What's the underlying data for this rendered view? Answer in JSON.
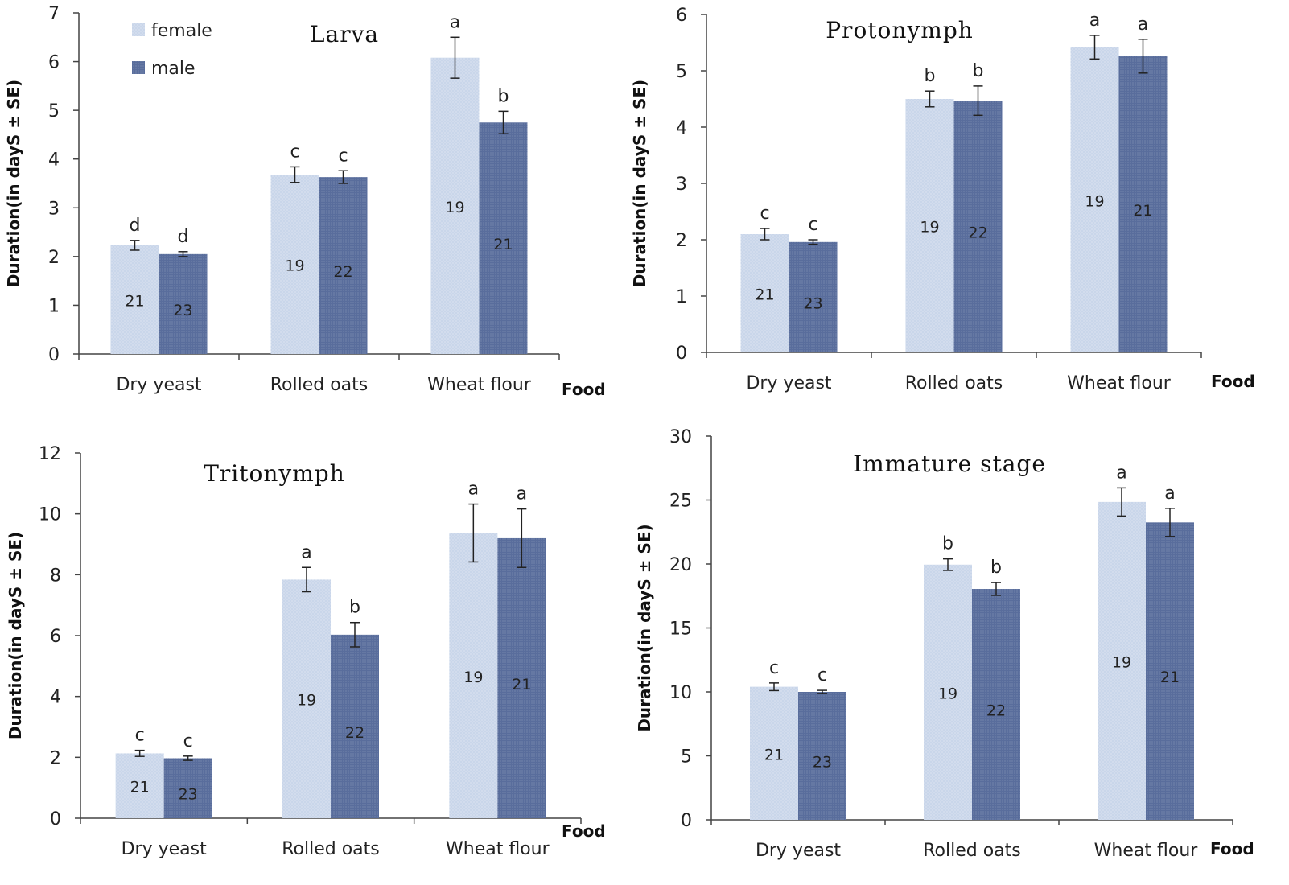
{
  "colors": {
    "female": "#c9d6ea",
    "male": "#596d9c",
    "axis": "#444444"
  },
  "legend": {
    "female": "female",
    "male": "male"
  },
  "chart_data": [
    {
      "type": "bar",
      "title": "Larva",
      "ylabel": "Duration(in dayS ± SE)",
      "xlabel": "Food",
      "categories": [
        "Dry yeast",
        "Rolled oats",
        "Wheat flour"
      ],
      "ylim": [
        0,
        7
      ],
      "yticks": [
        0,
        1,
        2,
        3,
        4,
        5,
        6,
        7
      ],
      "series": [
        {
          "name": "female",
          "values": [
            2.23,
            3.68,
            6.08
          ],
          "err": [
            0.1,
            0.16,
            0.42
          ],
          "sig": [
            "d",
            "c",
            "a"
          ],
          "n": [
            "21",
            "19",
            "19"
          ]
        },
        {
          "name": "male",
          "values": [
            2.05,
            3.63,
            4.75
          ],
          "err": [
            0.05,
            0.13,
            0.23
          ],
          "sig": [
            "d",
            "c",
            "b"
          ],
          "n": [
            "23",
            "22",
            "21"
          ]
        }
      ]
    },
    {
      "type": "bar",
      "title": "Protonymph",
      "ylabel": "Duration(in dayS ± SE)",
      "xlabel": "Food",
      "categories": [
        "Dry yeast",
        "Rolled oats",
        "Wheat flour"
      ],
      "ylim": [
        0,
        6
      ],
      "yticks": [
        0,
        1,
        2,
        3,
        4,
        5,
        6
      ],
      "series": [
        {
          "name": "female",
          "values": [
            2.1,
            4.5,
            5.42
          ],
          "err": [
            0.1,
            0.14,
            0.21
          ],
          "sig": [
            "c",
            "b",
            "a"
          ],
          "n": [
            "21",
            "19",
            "19"
          ]
        },
        {
          "name": "male",
          "values": [
            1.96,
            4.47,
            5.26
          ],
          "err": [
            0.04,
            0.26,
            0.3
          ],
          "sig": [
            "c",
            "b",
            "a"
          ],
          "n": [
            "23",
            "22",
            "21"
          ]
        }
      ]
    },
    {
      "type": "bar",
      "title": "Tritonymph",
      "ylabel": "Duration(in dayS ± SE)",
      "xlabel": "Food",
      "categories": [
        "Dry yeast",
        "Rolled oats",
        "Wheat flour"
      ],
      "ylim": [
        0,
        12
      ],
      "yticks": [
        0,
        2,
        4,
        6,
        8,
        10,
        12
      ],
      "series": [
        {
          "name": "female",
          "values": [
            2.13,
            7.84,
            9.37
          ],
          "err": [
            0.1,
            0.4,
            0.95
          ],
          "sig": [
            "c",
            "a",
            "a"
          ],
          "n": [
            "21",
            "19",
            "19"
          ]
        },
        {
          "name": "male",
          "values": [
            1.97,
            6.03,
            9.2
          ],
          "err": [
            0.07,
            0.4,
            0.96
          ],
          "sig": [
            "c",
            "b",
            "a"
          ],
          "n": [
            "23",
            "22",
            "21"
          ]
        }
      ]
    },
    {
      "type": "bar",
      "title": "Immature stage",
      "ylabel": "Duration(in dayS ± SE)",
      "xlabel": "Food",
      "categories": [
        "Dry yeast",
        "Rolled oats",
        "Wheat flour"
      ],
      "ylim": [
        0,
        30
      ],
      "yticks": [
        0,
        5,
        10,
        15,
        20,
        25,
        30
      ],
      "series": [
        {
          "name": "female",
          "values": [
            10.4,
            19.95,
            24.85
          ],
          "err": [
            0.3,
            0.45,
            1.1
          ],
          "sig": [
            "c",
            "b",
            "a"
          ],
          "n": [
            "21",
            "19",
            "19"
          ]
        },
        {
          "name": "male",
          "values": [
            10.0,
            18.05,
            23.25
          ],
          "err": [
            0.12,
            0.5,
            1.1
          ],
          "sig": [
            "c",
            "b",
            "a"
          ],
          "n": [
            "23",
            "22",
            "21"
          ]
        }
      ]
    }
  ]
}
